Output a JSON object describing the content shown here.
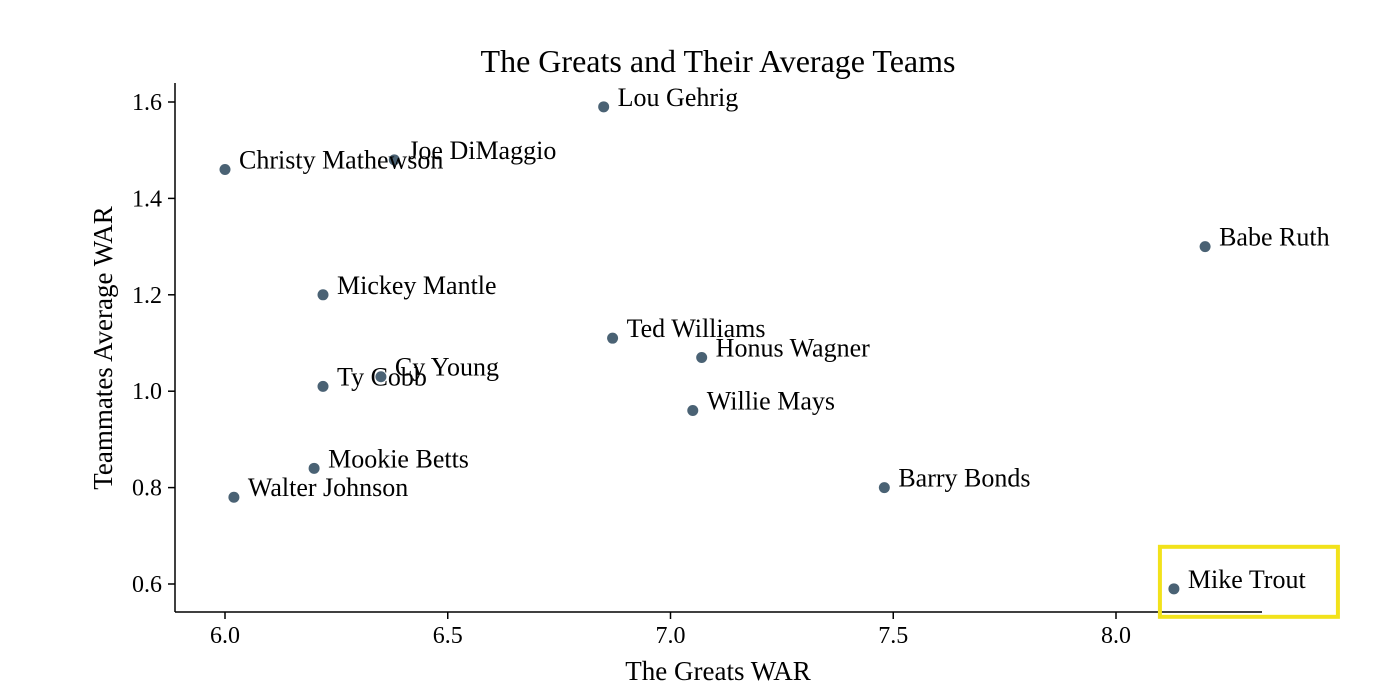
{
  "chart_data": {
    "type": "scatter",
    "title": "The Greats and Their Average Teams",
    "xlabel": "The Greats WAR",
    "ylabel": "Teammates Average WAR",
    "xlim": [
      5.9,
      8.35
    ],
    "ylim": [
      0.54,
      1.64
    ],
    "xticks": [
      6.0,
      6.5,
      7.0,
      7.5,
      8.0
    ],
    "xtick_labels": [
      "6.0",
      "6.5",
      "7.0",
      "7.5",
      "8.0"
    ],
    "yticks": [
      0.6,
      0.8,
      1.0,
      1.2,
      1.4,
      1.6
    ],
    "ytick_labels": [
      "0.6",
      "0.8",
      "1.0",
      "1.2",
      "1.4",
      "1.6"
    ],
    "grid": false,
    "point_color": "#4a6274",
    "highlight": {
      "label": "Mike Trout",
      "color": "#f2e21b"
    },
    "points": [
      {
        "label": "Lou Gehrig",
        "x": 6.85,
        "y": 1.59
      },
      {
        "label": "Christy Mathewson",
        "x": 6.0,
        "y": 1.46
      },
      {
        "label": "Joe DiMaggio",
        "x": 6.38,
        "y": 1.48
      },
      {
        "label": "Babe Ruth",
        "x": 8.2,
        "y": 1.3
      },
      {
        "label": "Mickey Mantle",
        "x": 6.22,
        "y": 1.2
      },
      {
        "label": "Ted Williams",
        "x": 6.87,
        "y": 1.11
      },
      {
        "label": "Honus Wagner",
        "x": 7.07,
        "y": 1.07
      },
      {
        "label": "Cy Young",
        "x": 6.35,
        "y": 1.03
      },
      {
        "label": "Ty Cobb",
        "x": 6.22,
        "y": 1.01
      },
      {
        "label": "Willie Mays",
        "x": 7.05,
        "y": 0.96
      },
      {
        "label": "Mookie Betts",
        "x": 6.2,
        "y": 0.84
      },
      {
        "label": "Walter Johnson",
        "x": 6.02,
        "y": 0.78
      },
      {
        "label": "Barry Bonds",
        "x": 7.48,
        "y": 0.8
      },
      {
        "label": "Mike Trout",
        "x": 8.13,
        "y": 0.59
      }
    ]
  }
}
